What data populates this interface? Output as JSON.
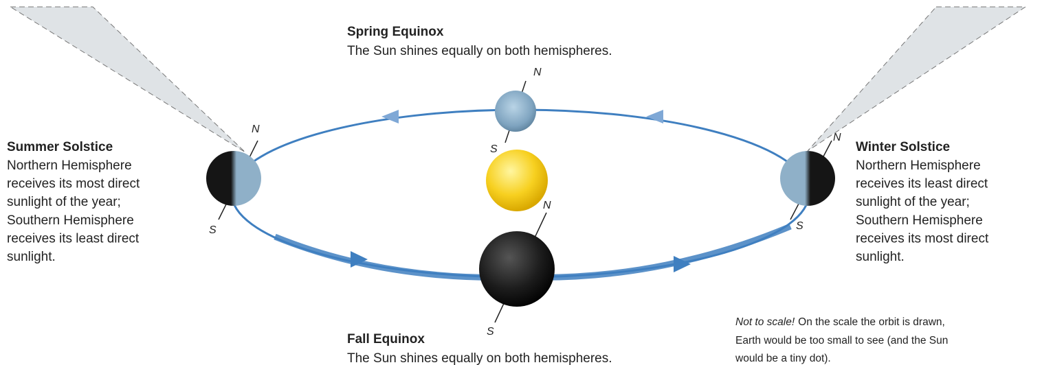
{
  "spring_equinox": {
    "title": "Spring Equinox",
    "description": "The Sun shines equally on both hemispheres.",
    "north": "N",
    "south": "S"
  },
  "summer_solstice": {
    "title": "Summer Solstice",
    "lines": [
      "Northern Hemisphere",
      "receives its most direct",
      "sunlight of the year;",
      "Southern Hemisphere",
      "receives its least direct",
      "sunlight."
    ],
    "north": "N",
    "south": "S"
  },
  "winter_solstice": {
    "title": "Winter Solstice",
    "lines": [
      "Northern Hemisphere",
      "receives its least direct",
      "sunlight of the year;",
      "Southern Hemisphere",
      "receives its most direct",
      "sunlight."
    ],
    "north": "N",
    "south": "S"
  },
  "fall_equinox": {
    "title": "Fall Equinox",
    "description": "The Sun shines equally on both hemispheres.",
    "north": "N",
    "south": "S"
  },
  "note": {
    "emphasis": "Not to scale!",
    "lines": [
      "On the scale the orbit is drawn,",
      "Earth would be too small to see (and the Sun",
      "would be a tiny dot)."
    ]
  }
}
